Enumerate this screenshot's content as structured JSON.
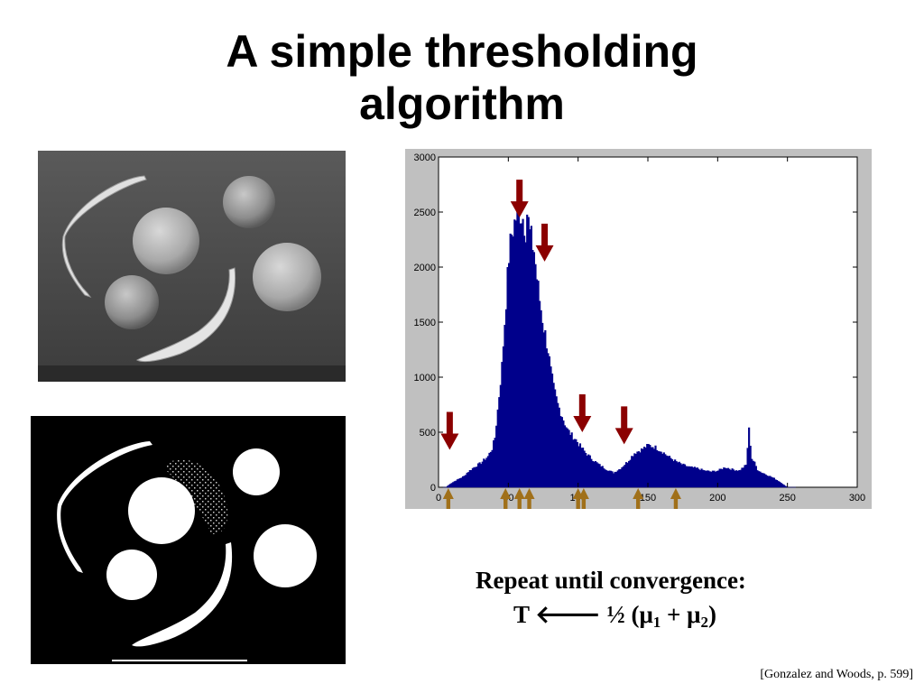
{
  "slide": {
    "title_line1": "A simple thresholding",
    "title_line2": "algorithm",
    "caption_line1": "Repeat until convergence:",
    "caption_line2": {
      "t": "T",
      "arrow": "🡐",
      "half": "½",
      "open": "(",
      "mu1": "μ",
      "sub1": "1",
      "plus": "+",
      "mu2": "μ",
      "sub2": "2",
      "close": ")"
    },
    "citation": "[Gonzalez and Woods, p. 599]"
  },
  "images": {
    "grayscale": {
      "description_icon": "fruit-photo-grayscale"
    },
    "binary": {
      "description_icon": "fruit-photo-thresholded"
    }
  },
  "colors": {
    "histogram_fill": "#00008b",
    "down_arrow": "#8b0000",
    "up_arrow": "#a0701a"
  },
  "chart_data": {
    "type": "bar",
    "xlim": [
      0,
      300
    ],
    "ylim": [
      0,
      3000
    ],
    "xticks": [
      0,
      50,
      100,
      150,
      200,
      250,
      300
    ],
    "yticks": [
      0,
      500,
      1000,
      1500,
      2000,
      2500,
      3000
    ],
    "grid": false,
    "profile": {
      "x": [
        0,
        5,
        8,
        12,
        15,
        18,
        20,
        25,
        30,
        35,
        38,
        40,
        42,
        45,
        48,
        50,
        52,
        55,
        57,
        60,
        62,
        63,
        65,
        68,
        70,
        72,
        75,
        78,
        80,
        82,
        85,
        88,
        90,
        92,
        95,
        98,
        100,
        105,
        110,
        115,
        120,
        125,
        130,
        135,
        140,
        145,
        150,
        155,
        160,
        165,
        170,
        175,
        180,
        185,
        190,
        195,
        200,
        205,
        210,
        215,
        220,
        222,
        224,
        226,
        228,
        230,
        235,
        240,
        245,
        248,
        250
      ],
      "y": [
        0,
        0,
        30,
        60,
        80,
        100,
        130,
        180,
        220,
        280,
        350,
        450,
        700,
        1100,
        1700,
        2100,
        2300,
        2450,
        2530,
        2450,
        2350,
        2500,
        2300,
        2150,
        1900,
        1700,
        1450,
        1250,
        1050,
        900,
        750,
        650,
        580,
        520,
        470,
        430,
        390,
        310,
        250,
        200,
        160,
        130,
        170,
        230,
        310,
        340,
        380,
        360,
        320,
        270,
        230,
        200,
        180,
        170,
        150,
        140,
        150,
        180,
        160,
        150,
        200,
        520,
        260,
        220,
        160,
        140,
        110,
        80,
        40,
        10,
        0
      ]
    }
  }
}
